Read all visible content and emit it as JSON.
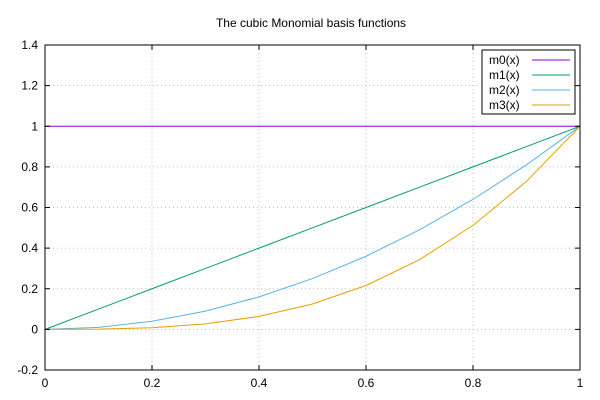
{
  "chart_data": {
    "type": "line",
    "title": "The cubic Monomial basis functions",
    "xlabel": "",
    "ylabel": "",
    "xlim": [
      0,
      1
    ],
    "ylim": [
      -0.2,
      1.4
    ],
    "x_ticks": [
      0,
      0.2,
      0.4,
      0.6,
      0.8,
      1
    ],
    "x_tick_labels": [
      "0",
      "0.2",
      "0.4",
      "0.6",
      "0.8",
      "1"
    ],
    "y_ticks": [
      -0.2,
      0,
      0.2,
      0.4,
      0.6,
      0.8,
      1,
      1.2,
      1.4
    ],
    "y_tick_labels": [
      "-0.2",
      "0",
      "0.2",
      "0.4",
      "0.6",
      "0.8",
      "1",
      "1.2",
      "1.4"
    ],
    "grid": true,
    "legend_position": "top-right",
    "x": [
      0,
      0.1,
      0.2,
      0.3,
      0.4,
      0.5,
      0.6,
      0.7,
      0.8,
      0.9,
      1
    ],
    "series": [
      {
        "name": "m0(x)",
        "color": "#9400d3",
        "values": [
          1,
          1,
          1,
          1,
          1,
          1,
          1,
          1,
          1,
          1,
          1
        ]
      },
      {
        "name": "m1(x)",
        "color": "#009e73",
        "values": [
          0,
          0.1,
          0.2,
          0.3,
          0.4,
          0.5,
          0.6,
          0.7,
          0.8,
          0.9,
          1
        ]
      },
      {
        "name": "m2(x)",
        "color": "#56b4e9",
        "values": [
          0,
          0.01,
          0.04,
          0.09,
          0.16,
          0.25,
          0.36,
          0.49,
          0.64,
          0.81,
          1
        ]
      },
      {
        "name": "m3(x)",
        "color": "#e69f00",
        "values": [
          0,
          0.001,
          0.008,
          0.027,
          0.064,
          0.125,
          0.216,
          0.343,
          0.512,
          0.729,
          1
        ]
      }
    ]
  }
}
